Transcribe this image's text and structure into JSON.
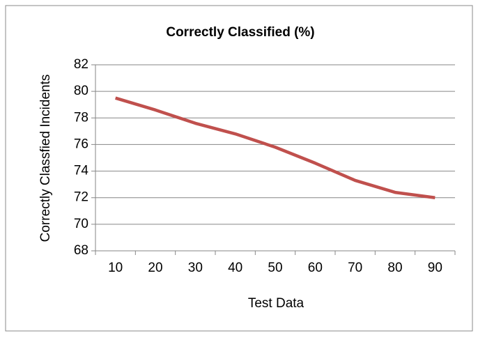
{
  "chart_data": {
    "type": "line",
    "title": "Correctly Classified (%)",
    "x_label": "Test Data",
    "y_label": "Correctly Classfied Incidents",
    "categories": [
      "10",
      "20",
      "30",
      "40",
      "50",
      "60",
      "70",
      "80",
      "90"
    ],
    "series": [
      {
        "name": "Correctly Classified (%)",
        "color": "#c0504d",
        "values": [
          79.5,
          78.6,
          77.6,
          76.8,
          75.8,
          74.6,
          73.3,
          72.4,
          72.0
        ]
      }
    ],
    "ylim": [
      68,
      82
    ],
    "yticks": [
      68,
      70,
      72,
      74,
      76,
      78,
      80,
      82
    ],
    "grid": true
  }
}
